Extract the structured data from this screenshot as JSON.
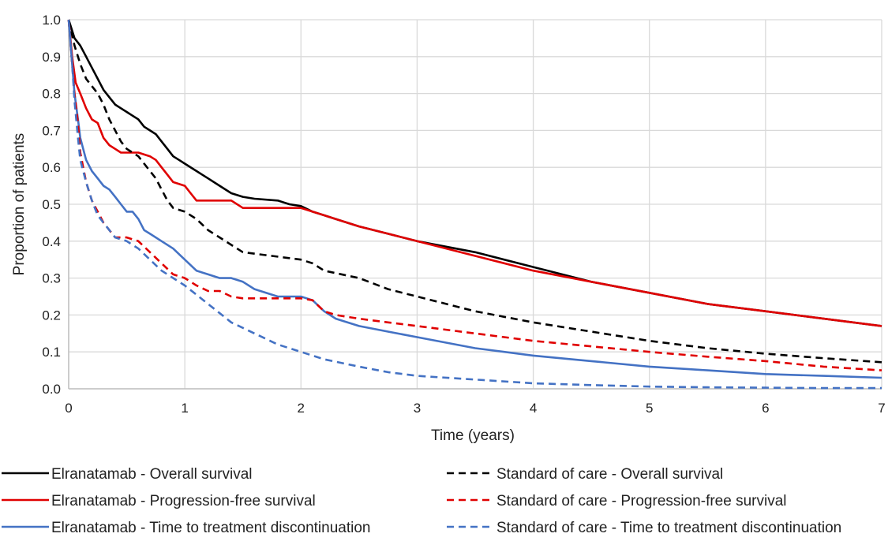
{
  "chart_data": {
    "type": "line",
    "xlabel": "Time (years)",
    "ylabel": "Proportion of patients",
    "xlim": [
      0,
      7
    ],
    "ylim": [
      0,
      1.0
    ],
    "x_ticks": [
      "0",
      "1",
      "2",
      "3",
      "4",
      "5",
      "6",
      "7"
    ],
    "y_ticks": [
      "0.0",
      "0.1",
      "0.2",
      "0.3",
      "0.4",
      "0.5",
      "0.6",
      "0.7",
      "0.8",
      "0.9",
      "1.0"
    ],
    "grid": true,
    "legend_position": "bottom",
    "series": [
      {
        "name": "Elranatamab - Overall survival",
        "color": "#000000",
        "dash": "solid",
        "x": [
          0,
          0.05,
          0.1,
          0.15,
          0.2,
          0.25,
          0.3,
          0.35,
          0.4,
          0.45,
          0.5,
          0.55,
          0.6,
          0.65,
          0.7,
          0.75,
          0.8,
          0.85,
          0.9,
          0.95,
          1.0,
          1.1,
          1.2,
          1.3,
          1.4,
          1.5,
          1.6,
          1.8,
          1.9,
          2.0,
          2.1,
          2.2,
          2.3,
          2.5,
          2.75,
          3.0,
          3.5,
          4.0,
          4.5,
          5.0,
          5.5,
          6.0,
          6.5,
          7.0
        ],
        "y": [
          1.0,
          0.95,
          0.93,
          0.9,
          0.87,
          0.84,
          0.81,
          0.79,
          0.77,
          0.76,
          0.75,
          0.74,
          0.73,
          0.71,
          0.7,
          0.69,
          0.67,
          0.65,
          0.63,
          0.62,
          0.61,
          0.59,
          0.57,
          0.55,
          0.53,
          0.52,
          0.515,
          0.51,
          0.5,
          0.495,
          0.48,
          0.47,
          0.46,
          0.44,
          0.42,
          0.4,
          0.37,
          0.33,
          0.29,
          0.26,
          0.23,
          0.21,
          0.19,
          0.17
        ]
      },
      {
        "name": "Elranatamab - Progression-free survival",
        "color": "#e00000",
        "dash": "solid",
        "x": [
          0,
          0.03,
          0.06,
          0.1,
          0.15,
          0.2,
          0.25,
          0.3,
          0.35,
          0.4,
          0.45,
          0.5,
          0.6,
          0.7,
          0.75,
          0.8,
          0.85,
          0.9,
          1.0,
          1.05,
          1.1,
          1.2,
          1.3,
          1.4,
          1.5,
          1.6,
          1.8,
          2.0,
          2.1,
          2.2,
          2.3,
          2.5,
          2.75,
          3.0,
          3.5,
          4.0,
          4.5,
          5.0,
          5.5,
          6.0,
          6.5,
          7.0
        ],
        "y": [
          1.0,
          0.9,
          0.83,
          0.8,
          0.76,
          0.73,
          0.72,
          0.68,
          0.66,
          0.65,
          0.64,
          0.64,
          0.64,
          0.63,
          0.62,
          0.6,
          0.58,
          0.56,
          0.55,
          0.53,
          0.51,
          0.51,
          0.51,
          0.51,
          0.49,
          0.49,
          0.49,
          0.49,
          0.48,
          0.47,
          0.46,
          0.44,
          0.42,
          0.4,
          0.36,
          0.32,
          0.29,
          0.26,
          0.23,
          0.21,
          0.19,
          0.17
        ]
      },
      {
        "name": "Elranatamab - Time to treatment discontinuation",
        "color": "#4472c4",
        "dash": "solid",
        "x": [
          0,
          0.03,
          0.05,
          0.08,
          0.1,
          0.15,
          0.2,
          0.25,
          0.3,
          0.35,
          0.4,
          0.45,
          0.5,
          0.55,
          0.6,
          0.65,
          0.7,
          0.8,
          0.9,
          1.0,
          1.1,
          1.2,
          1.3,
          1.4,
          1.5,
          1.6,
          1.8,
          2.0,
          2.1,
          2.2,
          2.3,
          2.5,
          2.75,
          3.0,
          3.5,
          4.0,
          4.5,
          5.0,
          5.5,
          6.0,
          6.5,
          7.0
        ],
        "y": [
          1.0,
          0.88,
          0.8,
          0.73,
          0.68,
          0.62,
          0.59,
          0.57,
          0.55,
          0.54,
          0.52,
          0.5,
          0.48,
          0.48,
          0.46,
          0.43,
          0.42,
          0.4,
          0.38,
          0.35,
          0.32,
          0.31,
          0.3,
          0.3,
          0.29,
          0.27,
          0.25,
          0.25,
          0.24,
          0.21,
          0.19,
          0.17,
          0.155,
          0.14,
          0.11,
          0.09,
          0.075,
          0.06,
          0.05,
          0.04,
          0.035,
          0.03
        ]
      },
      {
        "name": "Standard of care - Overall survival",
        "color": "#000000",
        "dash": "dashed",
        "x": [
          0,
          0.05,
          0.1,
          0.15,
          0.2,
          0.25,
          0.3,
          0.35,
          0.4,
          0.45,
          0.5,
          0.6,
          0.7,
          0.75,
          0.8,
          0.85,
          0.9,
          1.0,
          1.1,
          1.2,
          1.3,
          1.4,
          1.5,
          1.75,
          2.0,
          2.1,
          2.2,
          2.5,
          2.75,
          3.0,
          3.5,
          4.0,
          4.5,
          5.0,
          5.5,
          6.0,
          6.5,
          7.0
        ],
        "y": [
          1.0,
          0.93,
          0.88,
          0.84,
          0.82,
          0.8,
          0.77,
          0.73,
          0.7,
          0.67,
          0.65,
          0.63,
          0.59,
          0.57,
          0.54,
          0.51,
          0.49,
          0.48,
          0.46,
          0.43,
          0.41,
          0.39,
          0.37,
          0.36,
          0.35,
          0.34,
          0.32,
          0.3,
          0.27,
          0.25,
          0.21,
          0.18,
          0.155,
          0.13,
          0.11,
          0.095,
          0.083,
          0.072
        ]
      },
      {
        "name": "Standard of care - Progression-free survival",
        "color": "#e00000",
        "dash": "dashed",
        "x": [
          0,
          0.03,
          0.05,
          0.08,
          0.1,
          0.15,
          0.2,
          0.25,
          0.3,
          0.4,
          0.5,
          0.6,
          0.7,
          0.8,
          0.9,
          1.0,
          1.1,
          1.2,
          1.3,
          1.4,
          1.5,
          1.75,
          2.0,
          2.1,
          2.2,
          2.3,
          2.5,
          2.75,
          3.0,
          3.5,
          4.0,
          4.5,
          5.0,
          5.5,
          6.0,
          6.5,
          7.0
        ],
        "y": [
          1.0,
          0.88,
          0.8,
          0.72,
          0.64,
          0.56,
          0.51,
          0.48,
          0.45,
          0.41,
          0.41,
          0.4,
          0.37,
          0.34,
          0.31,
          0.3,
          0.28,
          0.265,
          0.265,
          0.25,
          0.245,
          0.245,
          0.245,
          0.24,
          0.21,
          0.2,
          0.19,
          0.18,
          0.17,
          0.15,
          0.13,
          0.115,
          0.1,
          0.087,
          0.075,
          0.06,
          0.05
        ]
      },
      {
        "name": "Standard of care - Time to treatment discontinuation",
        "color": "#4472c4",
        "dash": "dashed",
        "x": [
          0,
          0.03,
          0.05,
          0.08,
          0.1,
          0.15,
          0.2,
          0.25,
          0.3,
          0.35,
          0.4,
          0.5,
          0.6,
          0.7,
          0.8,
          0.9,
          1.0,
          1.2,
          1.4,
          1.6,
          1.8,
          2.0,
          2.2,
          2.5,
          2.75,
          3.0,
          3.5,
          4.0,
          4.5,
          5.0,
          5.5,
          6.0,
          6.5,
          7.0
        ],
        "y": [
          1.0,
          0.88,
          0.78,
          0.68,
          0.62,
          0.56,
          0.51,
          0.47,
          0.45,
          0.43,
          0.41,
          0.4,
          0.38,
          0.35,
          0.32,
          0.3,
          0.28,
          0.23,
          0.18,
          0.15,
          0.12,
          0.1,
          0.08,
          0.06,
          0.045,
          0.035,
          0.025,
          0.015,
          0.01,
          0.006,
          0.004,
          0.003,
          0.002,
          0.002
        ]
      }
    ]
  }
}
